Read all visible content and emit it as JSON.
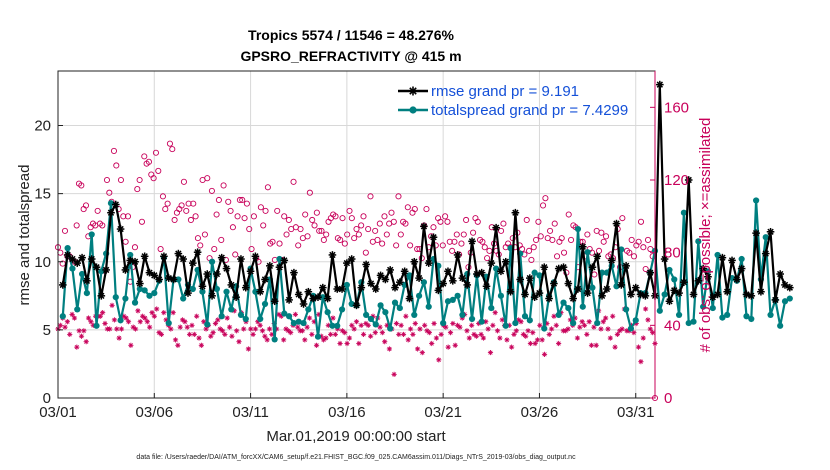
{
  "page": {
    "footer": "data file: /Users/raeder/DAI/ATM_forcXX/CAM6_setup/f.e21.FHIST_BGC.f09_025.CAM6assim.011/Diags_NTrS_2019-03/obs_diag_output.nc"
  },
  "chart_data": {
    "type": "line",
    "title": "Tropics 5574 / 11546 = 48.276%",
    "subtitle": "GPSRO_REFRACTIVITY @ 415 m",
    "xlabel": "Mar.01,2019 00:00:00 start",
    "ylabel": "rmse and totalspread",
    "y2label": "# of obs: o=possible; ×=assimilated",
    "xlim": [
      0,
      31
    ],
    "ylim": [
      0,
      24
    ],
    "y2lim": [
      0,
      180
    ],
    "x_ticks": [
      0,
      5,
      10,
      15,
      20,
      25,
      30
    ],
    "x_tick_labels": [
      "03/01",
      "03/06",
      "03/11",
      "03/16",
      "03/21",
      "03/26",
      "03/31"
    ],
    "y_ticks": [
      0,
      5,
      10,
      15,
      20
    ],
    "y_tick_labels": [
      "0",
      "5",
      "10",
      "15",
      "20"
    ],
    "y2_ticks": [
      0,
      40,
      80,
      120,
      160
    ],
    "y2_tick_labels": [
      "0",
      "40",
      "80",
      "120",
      "160"
    ],
    "grid": true,
    "legend_position": "top-right",
    "colors": {
      "rmse": "#000000",
      "totalspread": "#007f80",
      "obs": "#c8005a",
      "legend_text": "#1450d8",
      "grid": "#d8d8d8"
    },
    "time_step_days": 0.25,
    "series": [
      {
        "name": "rmse grand pr = 9.191",
        "legend": "rmse grand pr = 9.191",
        "marker": "asterisk",
        "values": [
          8.3,
          10.5,
          10.2,
          9.9,
          10.3,
          8.6,
          10.2,
          9.6,
          7.5,
          9.4,
          13.6,
          14.2,
          12.4,
          9.4,
          10.1,
          10.0,
          8.4,
          10.4,
          9.2,
          9.0,
          8.7,
          10.4,
          8.8,
          8.7,
          10.6,
          10.2,
          7.7,
          9.9,
          10.7,
          8.2,
          9.1,
          7.5,
          9.1,
          10.3,
          9.5,
          8.3,
          7.4,
          10.2,
          8.1,
          9.3,
          10.4,
          7.8,
          8.7,
          9.7,
          7.1,
          9.6,
          10.1,
          7.2,
          9.2,
          7.6,
          6.9,
          7.8,
          7.3,
          7.4,
          8.1,
          7.3,
          10.5,
          8.0,
          8.0,
          9.9,
          10.2,
          6.8,
          8.1,
          9.8,
          8.4,
          8.0,
          9.0,
          8.7,
          9.4,
          8.1,
          8.5,
          9.3,
          7.3,
          10.0,
          8.8,
          12.6,
          9.9,
          11.8,
          7.9,
          8.4,
          9.3,
          8.6,
          10.5,
          8.8,
          8.3,
          11.5,
          9.1,
          9.2,
          8.2,
          9.9,
          12.5,
          9.3,
          10.0,
          7.8,
          13.6,
          8.7,
          7.6,
          8.8,
          7.4,
          7.7,
          9.6,
          7.3,
          8.4,
          9.5,
          9.6,
          8.4,
          7.3,
          8.0,
          11.1,
          7.7,
          9.6,
          10.4,
          7.5,
          8.0,
          10.1,
          12.8,
          8.3,
          9.7,
          7.6,
          8.1,
          7.6,
          7.5,
          9.2,
          7.5,
          23.0,
          10.2,
          7.1,
          7.9,
          7.7,
          8.5,
          16.0,
          7.6,
          8.6,
          9.5,
          8.9,
          7.4,
          7.6,
          10.3,
          7.8,
          10.1,
          8.7,
          9.5,
          7.6,
          7.5,
          12.1,
          7.8,
          10.6,
          12.2,
          7.2,
          9.1,
          8.3,
          8.1
        ]
      },
      {
        "name": "totalspread grand pr = 7.4299",
        "legend": "totalspread grand pr = 7.4299",
        "marker": "dot",
        "values": [
          6.0,
          11.0,
          9.5,
          6.5,
          9.1,
          7.7,
          12.0,
          5.3,
          9.3,
          10.6,
          14.3,
          7.4,
          5.7,
          7.3,
          10.5,
          7.0,
          8.0,
          7.9,
          7.5,
          7.7,
          8.6,
          10.3,
          5.5,
          8.7,
          8.7,
          7.3,
          8.3,
          8.0,
          9.4,
          7.8,
          5.4,
          10.0,
          8.0,
          6.0,
          7.8,
          6.5,
          8.2,
          6.1,
          5.8,
          9.5,
          7.8,
          5.8,
          6.9,
          8.7,
          4.3,
          10.2,
          6.2,
          6.0,
          5.5,
          5.6,
          5.5,
          6.5,
          7.5,
          4.5,
          7.4,
          6.3,
          5.3,
          5.3,
          6.5,
          8.3,
          6.9,
          6.8,
          8.5,
          6.1,
          5.8,
          5.4,
          6.8,
          6.3,
          5.1,
          7.0,
          6.6,
          8.3,
          9.0,
          6.1,
          7.5,
          8.5,
          6.7,
          10.2,
          9.7,
          5.5,
          7.1,
          7.2,
          7.5,
          6.1,
          9.1,
          5.8,
          9.0,
          5.6,
          8.9,
          6.6,
          9.5,
          7.5,
          5.3,
          11.0,
          5.5,
          10.6,
          6.0,
          5.7,
          9.2,
          9.0,
          5.1,
          7.5,
          8.5,
          6.1,
          7.0,
          6.6,
          5.5,
          12.4,
          6.7,
          10.7,
          8.1,
          5.5,
          9.2,
          9.2,
          9.7,
          8.2,
          10.9,
          6.5,
          5.1,
          5.7,
          7.7,
          7.7,
          9.2,
          10.8,
          6.4,
          7.6,
          9.4,
          8.7,
          6.1,
          13.6,
          5.5,
          5.6,
          11.5,
          6.7,
          9.3,
          6.6,
          10.5,
          5.9,
          6.1,
          8.8,
          8.6,
          10.2,
          6.0,
          5.8,
          14.5,
          8.7,
          11.8,
          6.1,
          7.2,
          5.3,
          7.1,
          7.3
        ]
      }
    ],
    "obs_possible": [
      83,
      80,
      74,
      92,
      78,
      78,
      76,
      75,
      95,
      118,
      117,
      104,
      106,
      89,
      94,
      96,
      95,
      103,
      96,
      95,
      70,
      120,
      113,
      108,
      136,
      128,
      104,
      120,
      100,
      86,
      100,
      64,
      72,
      83,
      115,
      120,
      97,
      133,
      129,
      130,
      123,
      121,
      135,
      125,
      82,
      111,
      104,
      107,
      140,
      137,
      98,
      102,
      104,
      106,
      119,
      103,
      107,
      98,
      107,
      100,
      88,
      84,
      120,
      90,
      121,
      77,
      114,
      82,
      101,
      109,
      87,
      117,
      76,
      108,
      103,
      94,
      79,
      100,
      109,
      109,
      99,
      107,
      93,
      82,
      100,
      77,
      75,
      105,
      95,
      103,
      116,
      85,
      86,
      76,
      103,
      85,
      76,
      100,
      90,
      98,
      93,
      119,
      94,
      84,
      93,
      88,
      101,
      89,
      113,
      98,
      95,
      102,
      92,
      92,
      87,
      90,
      97,
      99,
      101,
      100,
      88,
      87,
      99,
      85,
      90,
      103,
      99,
      88,
      93,
      90,
      95,
      100,
      80,
      93,
      111,
      86,
      92,
      87,
      96,
      85,
      100,
      90,
      96,
      102,
      97,
      84,
      111,
      90,
      97,
      96,
      105,
      84,
      102,
      104,
      82,
      82,
      77,
      95,
      104,
      83,
      89,
      94,
      84,
      99,
      97,
      84,
      100,
      97,
      86,
      81,
      86,
      90,
      79,
      85,
      90,
      98,
      72,
      80,
      91,
      99,
      97,
      87,
      86,
      83,
      77,
      81,
      94,
      85,
      81,
      79,
      92,
      96,
      83,
      85,
      83,
      88,
      83,
      91,
      84,
      82,
      79,
      98,
      81,
      76,
      83,
      87,
      97,
      89,
      106,
      110,
      88,
      92,
      87,
      96,
      78,
      86,
      88,
      80,
      69,
      101,
      87,
      95,
      94,
      72,
      86,
      86,
      78,
      90,
      82,
      80,
      68,
      92,
      81,
      91,
      86,
      89,
      78,
      79,
      77,
      83,
      93,
      72,
      99,
      72,
      81,
      80,
      87,
      78,
      84,
      86,
      97,
      83,
      71,
      87,
      82,
      78,
      0
    ],
    "obs_assimilated": [
      38,
      40,
      44,
      39,
      42,
      35,
      46,
      44,
      28,
      37,
      34,
      37,
      31,
      44,
      42,
      40,
      45,
      45,
      45,
      47,
      41,
      38,
      38,
      51,
      43,
      38,
      33,
      38,
      45,
      44,
      42,
      29,
      39,
      38,
      48,
      42,
      45,
      44,
      42,
      39,
      47,
      45,
      49,
      36,
      35,
      47,
      43,
      40,
      38,
      47,
      32,
      29,
      39,
      43,
      42,
      39,
      35,
      40,
      35,
      45,
      33,
      29,
      42,
      38,
      40,
      34,
      36,
      41,
      43,
      38,
      37,
      35,
      44,
      39,
      34,
      48,
      37,
      31,
      47,
      38,
      42,
      27,
      38,
      35,
      38,
      42,
      40,
      37,
      34,
      32,
      38,
      35,
      41,
      38,
      46,
      45,
      32,
      38,
      37,
      36,
      40,
      46,
      39,
      37,
      37,
      32,
      39,
      44,
      35,
      42,
      29,
      46,
      34,
      32,
      33,
      40,
      35,
      44,
      35,
      38,
      30,
      37,
      36,
      30,
      33,
      40,
      38,
      42,
      30,
      40,
      35,
      41,
      40,
      34,
      45,
      36,
      44,
      39,
      36,
      31,
      40,
      27,
      38,
      13,
      41,
      35,
      40,
      35,
      45,
      32,
      38,
      35,
      41,
      27,
      38,
      25,
      40,
      37,
      36,
      30,
      41,
      33,
      21,
      35,
      40,
      39,
      28,
      36,
      41,
      29,
      40,
      39,
      44,
      46,
      37,
      33,
      40,
      35,
      34,
      41,
      35,
      33,
      42,
      38,
      25,
      40,
      47,
      37,
      33,
      43,
      40,
      32,
      40,
      28,
      35,
      37,
      43,
      42,
      35,
      34,
      37,
      30,
      36,
      30,
      32,
      40,
      32,
      24,
      41,
      35,
      38,
      45,
      40,
      30,
      47,
      37,
      37,
      38,
      43,
      40,
      44,
      33,
      39,
      42,
      40,
      35,
      42,
      29,
      39,
      29,
      48,
      38,
      42,
      44,
      38,
      33,
      45,
      28,
      35,
      37,
      38,
      49,
      37,
      37,
      40,
      36,
      41,
      28,
      20,
      33,
      49,
      43,
      38,
      36,
      30
    ]
  }
}
